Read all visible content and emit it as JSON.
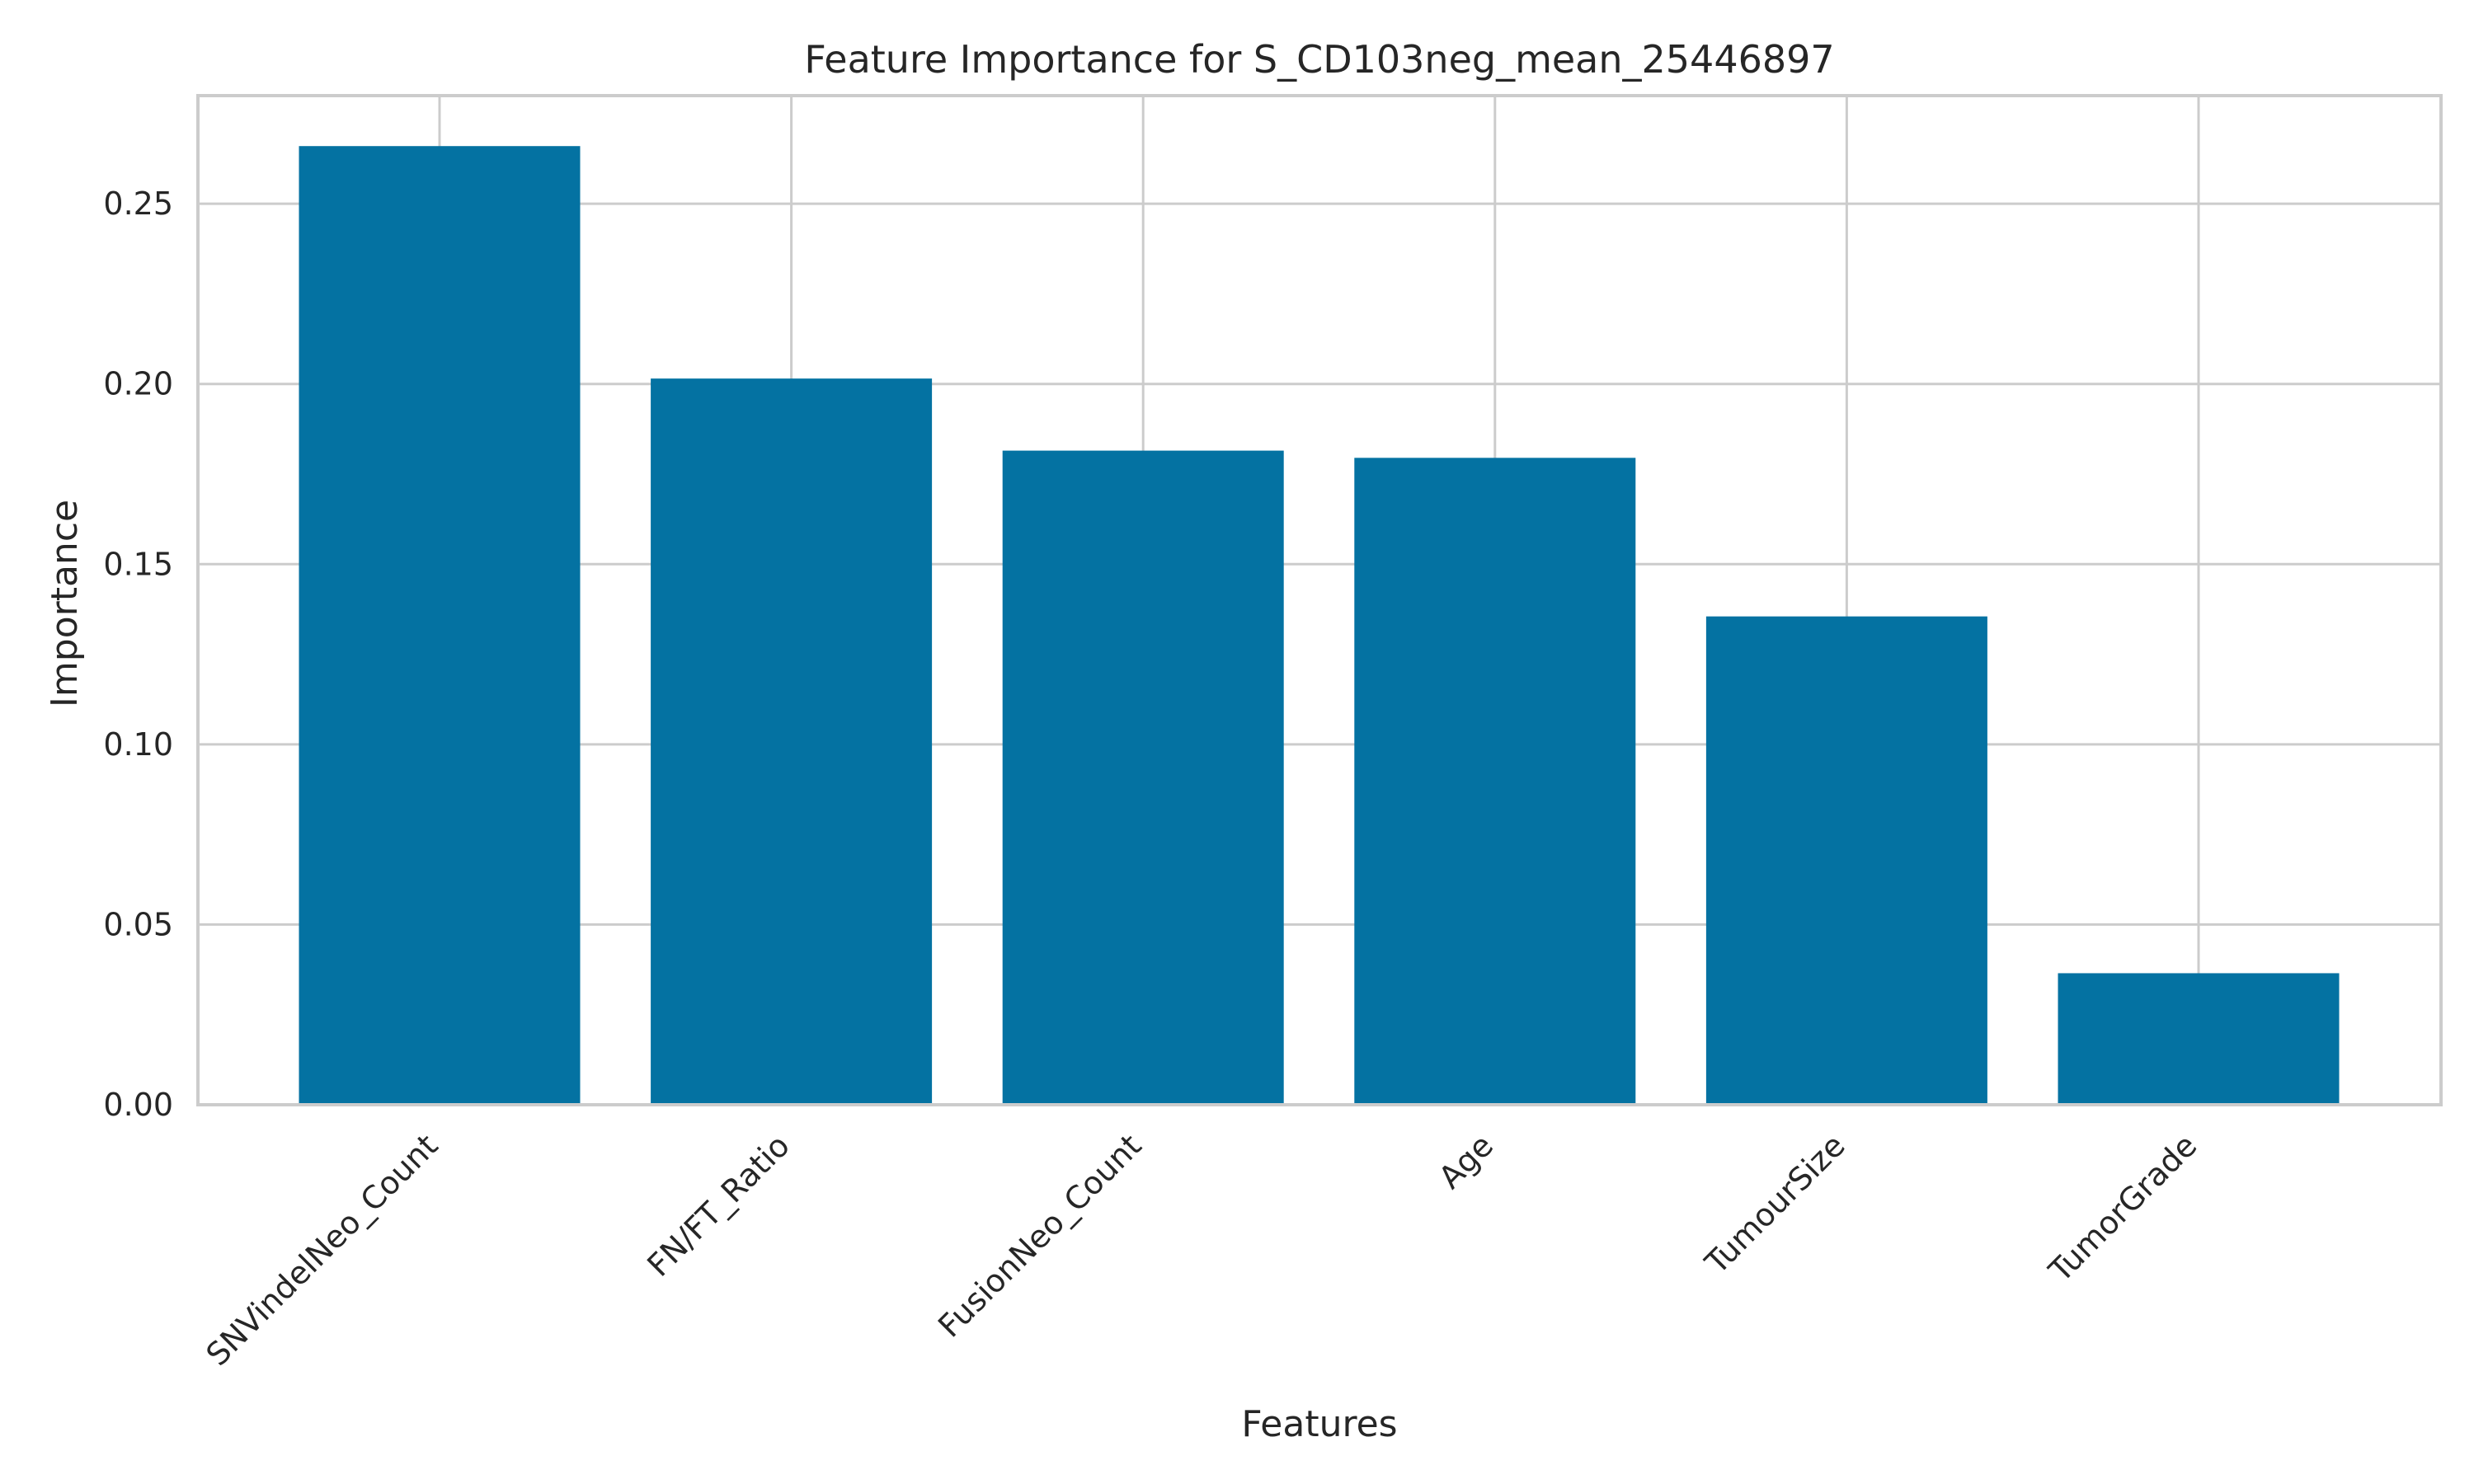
{
  "chart_data": {
    "type": "bar",
    "title": "Feature Importance for S_CD103neg_mean_25446897",
    "xlabel": "Features",
    "ylabel": "Importance",
    "categories": [
      "SNVindelNeo_Count",
      "FN/FT_Ratio",
      "FusionNeo_Count",
      "Age",
      "TumourSize",
      "TumorGrade"
    ],
    "values": [
      0.266,
      0.2015,
      0.1815,
      0.1795,
      0.1355,
      0.0365
    ],
    "ylim": [
      0,
      0.28
    ],
    "yticks": [
      0.0,
      0.05,
      0.1,
      0.15,
      0.2,
      0.25
    ],
    "ytick_labels": [
      "0.00",
      "0.05",
      "0.10",
      "0.15",
      "0.20",
      "0.25"
    ],
    "grid": true,
    "bar_color": "#0472a2",
    "grid_color": "#cccccc"
  }
}
